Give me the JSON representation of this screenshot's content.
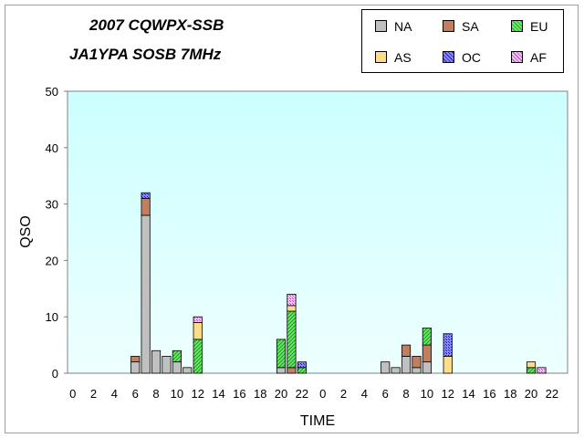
{
  "chart_data": {
    "type": "bar",
    "stacked": true,
    "title": "2007 CQWPX-SSB",
    "subtitle": "JA1YPA  SOSB  7MHz",
    "xlabel": "TIME",
    "ylabel": "QSO",
    "ylim": [
      0,
      50
    ],
    "yticks": [
      "0",
      "10",
      "20",
      "30",
      "40",
      "50"
    ],
    "xtick_labels": [
      "0",
      "2",
      "4",
      "6",
      "8",
      "10",
      "12",
      "14",
      "16",
      "18",
      "20",
      "22",
      "0",
      "2",
      "4",
      "6",
      "8",
      "10",
      "12",
      "14",
      "16",
      "18",
      "20",
      "22"
    ],
    "categories": [
      "0",
      "1",
      "2",
      "3",
      "4",
      "5",
      "6",
      "7",
      "8",
      "9",
      "10",
      "11",
      "12",
      "13",
      "14",
      "15",
      "16",
      "17",
      "18",
      "19",
      "20",
      "21",
      "22",
      "23",
      "0",
      "1",
      "2",
      "3",
      "4",
      "5",
      "6",
      "7",
      "8",
      "9",
      "10",
      "11",
      "12",
      "13",
      "14",
      "15",
      "16",
      "17",
      "18",
      "19",
      "20",
      "21",
      "22",
      "23"
    ],
    "legend_position": "top-right",
    "plot_background": "#ccffff",
    "series": [
      {
        "name": "NA",
        "color": "#c0c0c0",
        "pattern": "solid",
        "values": [
          0,
          0,
          0,
          0,
          0,
          0,
          2,
          28,
          4,
          3,
          2,
          1,
          0,
          0,
          0,
          0,
          0,
          0,
          0,
          0,
          1,
          0,
          0,
          0,
          0,
          0,
          0,
          0,
          0,
          0,
          2,
          1,
          3,
          1,
          2,
          0,
          0,
          0,
          0,
          0,
          0,
          0,
          0,
          0,
          0,
          0,
          0,
          0
        ]
      },
      {
        "name": "SA",
        "color": "#c08060",
        "pattern": "solid",
        "values": [
          0,
          0,
          0,
          0,
          0,
          0,
          1,
          3,
          0,
          0,
          0,
          0,
          0,
          0,
          0,
          0,
          0,
          0,
          0,
          0,
          0,
          1,
          0,
          0,
          0,
          0,
          0,
          0,
          0,
          0,
          0,
          0,
          2,
          2,
          3,
          0,
          0,
          0,
          0,
          0,
          0,
          0,
          0,
          0,
          0,
          0,
          0,
          0
        ]
      },
      {
        "name": "EU",
        "color": "#66ee66",
        "pattern": "hatch",
        "values": [
          0,
          0,
          0,
          0,
          0,
          0,
          0,
          0,
          0,
          0,
          2,
          0,
          6,
          0,
          0,
          0,
          0,
          0,
          0,
          0,
          5,
          10,
          1,
          0,
          0,
          0,
          0,
          0,
          0,
          0,
          0,
          0,
          0,
          0,
          3,
          0,
          0,
          0,
          0,
          0,
          0,
          0,
          0,
          0,
          1,
          0,
          0,
          0
        ]
      },
      {
        "name": "AS",
        "color": "#ffdd88",
        "pattern": "solid",
        "values": [
          0,
          0,
          0,
          0,
          0,
          0,
          0,
          0,
          0,
          0,
          0,
          0,
          3,
          0,
          0,
          0,
          0,
          0,
          0,
          0,
          0,
          1,
          0,
          0,
          0,
          0,
          0,
          0,
          0,
          0,
          0,
          0,
          0,
          0,
          0,
          0,
          3,
          0,
          0,
          0,
          0,
          0,
          0,
          0,
          1,
          0,
          0,
          0
        ]
      },
      {
        "name": "OC",
        "color": "#5555dd",
        "pattern": "cross",
        "values": [
          0,
          0,
          0,
          0,
          0,
          0,
          0,
          1,
          0,
          0,
          0,
          0,
          0,
          0,
          0,
          0,
          0,
          0,
          0,
          0,
          0,
          0,
          1,
          0,
          0,
          0,
          0,
          0,
          0,
          0,
          0,
          0,
          0,
          0,
          0,
          0,
          4,
          0,
          0,
          0,
          0,
          0,
          0,
          0,
          0,
          0,
          0,
          0
        ]
      },
      {
        "name": "AF",
        "color": "#ee99ee",
        "pattern": "cross",
        "values": [
          0,
          0,
          0,
          0,
          0,
          0,
          0,
          0,
          0,
          0,
          0,
          0,
          1,
          0,
          0,
          0,
          0,
          0,
          0,
          0,
          0,
          2,
          0,
          0,
          0,
          0,
          0,
          0,
          0,
          0,
          0,
          0,
          0,
          0,
          0,
          0,
          0,
          0,
          0,
          0,
          0,
          0,
          0,
          0,
          0,
          1,
          0,
          0
        ]
      }
    ]
  }
}
